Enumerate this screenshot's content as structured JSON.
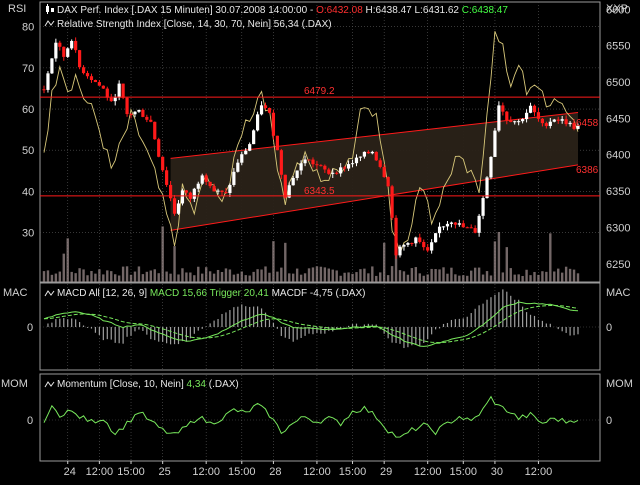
{
  "colors": {
    "background": "#000000",
    "grid": "#5a5a5a",
    "up_candle": "#ffffff",
    "down_candle": "#ff1a1a",
    "rsi_line": "#d8c87a",
    "support_line": "#ff1a1a",
    "channel_fill": "#2a2218",
    "volume": "#9a8a8a",
    "macd_line": "#78e85c",
    "trigger_line": "#78e85c",
    "histogram": "#a0a0a0",
    "momentum_line": "#78e85c",
    "axis_text": "#d0d0d0",
    "label_red": "#ff3030",
    "label_green": "#44ff44"
  },
  "main_panel": {
    "left_axis_label": "RSI",
    "right_axis_label": "XXP",
    "rsi_ticks": [
      "80",
      "70",
      "60",
      "50",
      "40",
      "30"
    ],
    "price_ticks": [
      "6600",
      "6550",
      "6500",
      "6450",
      "6400",
      "6350",
      "6300",
      "6250"
    ],
    "legend_price": {
      "icon": "candlestick-icon",
      "text": "DAX Perf. Index [.DAX  15 Minuten] 30.07.2008 14:00:00 - ",
      "o_label": "O:6432.08",
      "h_label": " H:6438.47",
      "l_label": " L:6431.62",
      "c_label": " C:6438.47"
    },
    "legend_rsi": {
      "icon": "line-icon",
      "text": "Relative Strength Index [Close, 14, 30, 70, Nein] 56,34 (.DAX)"
    },
    "price_labels": {
      "resistance": "6479.2",
      "support": "6343.5",
      "channel_top": "6458",
      "channel_bottom": "6386"
    }
  },
  "macd_panel": {
    "left_axis_label": "MAC",
    "right_axis_label": "MAC",
    "zero_tick": "0",
    "legend": {
      "icon": "line-icon",
      "part1": "MACD All [12, 26, 9] ",
      "macd_label": "MACD 15,66",
      "trigger_label": " Trigger 20,41",
      "macdf_label": " MACDF -4,75",
      "tail": " (.DAX)"
    }
  },
  "momentum_panel": {
    "left_axis_label": "MOM",
    "right_axis_label": "MOM",
    "zero_tick": "0",
    "legend": {
      "icon": "line-icon",
      "text": "Momentum [Close, 10, Nein] ",
      "value_label": "4,34",
      "tail": " (.DAX)"
    }
  },
  "time_axis": {
    "ticks": [
      "24",
      "12:00",
      "15:00",
      "25",
      "12:00",
      "15:00",
      "28",
      "12:00",
      "15:00",
      "29",
      "12:00",
      "15:00",
      "30",
      "12:00"
    ]
  },
  "chart_data": {
    "type": "candlestick",
    "title": "DAX Perf. Index [.DAX  15 Minuten] 30.07.2008 14:00:00",
    "last_bar": {
      "open": 6432.08,
      "high": 6438.47,
      "low": 6431.62,
      "close": 6438.47
    },
    "price_range": [
      6225,
      6610
    ],
    "rsi_range": [
      18,
      86
    ],
    "price_anchors": [
      [
        0,
        6490
      ],
      [
        3,
        6555
      ],
      [
        5,
        6535
      ],
      [
        7,
        6560
      ],
      [
        9,
        6520
      ],
      [
        12,
        6505
      ],
      [
        15,
        6490
      ],
      [
        17,
        6470
      ],
      [
        19,
        6495
      ],
      [
        21,
        6455
      ],
      [
        24,
        6460
      ],
      [
        27,
        6445
      ],
      [
        29,
        6400
      ],
      [
        31,
        6360
      ],
      [
        33,
        6320
      ],
      [
        35,
        6350
      ],
      [
        37,
        6340
      ],
      [
        40,
        6375
      ],
      [
        43,
        6350
      ],
      [
        46,
        6345
      ],
      [
        49,
        6390
      ],
      [
        52,
        6415
      ],
      [
        55,
        6470
      ],
      [
        57,
        6455
      ],
      [
        59,
        6405
      ],
      [
        61,
        6345
      ],
      [
        63,
        6370
      ],
      [
        66,
        6395
      ],
      [
        69,
        6385
      ],
      [
        72,
        6375
      ],
      [
        75,
        6380
      ],
      [
        78,
        6390
      ],
      [
        81,
        6400
      ],
      [
        83,
        6405
      ],
      [
        85,
        6385
      ],
      [
        87,
        6360
      ],
      [
        89,
        6265
      ],
      [
        91,
        6275
      ],
      [
        94,
        6285
      ],
      [
        97,
        6265
      ],
      [
        100,
        6300
      ],
      [
        103,
        6310
      ],
      [
        106,
        6300
      ],
      [
        109,
        6295
      ],
      [
        111,
        6340
      ],
      [
        113,
        6400
      ],
      [
        115,
        6470
      ],
      [
        117,
        6450
      ],
      [
        120,
        6445
      ],
      [
        123,
        6465
      ],
      [
        126,
        6440
      ],
      [
        129,
        6450
      ],
      [
        132,
        6445
      ],
      [
        134,
        6438
      ]
    ],
    "rsi_anchors": [
      [
        0,
        50
      ],
      [
        2,
        63
      ],
      [
        4,
        72
      ],
      [
        6,
        65
      ],
      [
        8,
        68
      ],
      [
        10,
        63
      ],
      [
        13,
        58
      ],
      [
        15,
        52
      ],
      [
        17,
        45
      ],
      [
        19,
        50
      ],
      [
        22,
        58
      ],
      [
        25,
        52
      ],
      [
        28,
        44
      ],
      [
        31,
        34
      ],
      [
        33,
        27
      ],
      [
        35,
        40
      ],
      [
        38,
        35
      ],
      [
        41,
        44
      ],
      [
        44,
        38
      ],
      [
        47,
        42
      ],
      [
        50,
        55
      ],
      [
        53,
        60
      ],
      [
        55,
        65
      ],
      [
        57,
        58
      ],
      [
        59,
        47
      ],
      [
        61,
        38
      ],
      [
        63,
        45
      ],
      [
        66,
        48
      ],
      [
        69,
        44
      ],
      [
        72,
        43
      ],
      [
        75,
        46
      ],
      [
        78,
        49
      ],
      [
        80,
        60
      ],
      [
        82,
        62
      ],
      [
        84,
        58
      ],
      [
        86,
        47
      ],
      [
        88,
        32
      ],
      [
        90,
        26
      ],
      [
        92,
        30
      ],
      [
        94,
        37
      ],
      [
        96,
        42
      ],
      [
        98,
        33
      ],
      [
        101,
        40
      ],
      [
        104,
        48
      ],
      [
        107,
        45
      ],
      [
        110,
        40
      ],
      [
        112,
        60
      ],
      [
        114,
        78
      ],
      [
        116,
        74
      ],
      [
        118,
        66
      ],
      [
        120,
        72
      ],
      [
        122,
        63
      ],
      [
        125,
        66
      ],
      [
        128,
        60
      ],
      [
        131,
        62
      ],
      [
        133,
        58
      ],
      [
        135,
        56
      ]
    ],
    "macd_anchors": [
      [
        0,
        0.3
      ],
      [
        4,
        0.5
      ],
      [
        8,
        0.6
      ],
      [
        12,
        0.45
      ],
      [
        16,
        0.2
      ],
      [
        20,
        0.0
      ],
      [
        24,
        0.1
      ],
      [
        28,
        -0.15
      ],
      [
        32,
        -0.4
      ],
      [
        36,
        -0.55
      ],
      [
        40,
        -0.45
      ],
      [
        44,
        -0.25
      ],
      [
        48,
        0.1
      ],
      [
        52,
        0.35
      ],
      [
        55,
        0.5
      ],
      [
        58,
        0.35
      ],
      [
        61,
        0.1
      ],
      [
        64,
        -0.05
      ],
      [
        68,
        -0.05
      ],
      [
        72,
        -0.1
      ],
      [
        76,
        -0.05
      ],
      [
        80,
        0.0
      ],
      [
        84,
        0.05
      ],
      [
        88,
        -0.3
      ],
      [
        92,
        -0.6
      ],
      [
        96,
        -0.75
      ],
      [
        100,
        -0.6
      ],
      [
        104,
        -0.45
      ],
      [
        108,
        -0.25
      ],
      [
        112,
        0.2
      ],
      [
        116,
        0.75
      ],
      [
        120,
        0.95
      ],
      [
        124,
        0.9
      ],
      [
        128,
        0.85
      ],
      [
        132,
        0.7
      ],
      [
        135,
        0.6
      ]
    ],
    "momentum_anchors": [
      [
        0,
        0.0
      ],
      [
        2,
        0.35
      ],
      [
        4,
        0.15
      ],
      [
        6,
        0.28
      ],
      [
        9,
        0.1
      ],
      [
        12,
        -0.05
      ],
      [
        15,
        0.05
      ],
      [
        18,
        -0.4
      ],
      [
        21,
        -0.1
      ],
      [
        24,
        0.25
      ],
      [
        27,
        -0.05
      ],
      [
        30,
        -0.3
      ],
      [
        33,
        -0.45
      ],
      [
        36,
        -0.2
      ],
      [
        39,
        0.1
      ],
      [
        42,
        -0.1
      ],
      [
        45,
        0.05
      ],
      [
        48,
        0.3
      ],
      [
        51,
        0.2
      ],
      [
        54,
        0.45
      ],
      [
        57,
        0.15
      ],
      [
        60,
        -0.35
      ],
      [
        63,
        -0.1
      ],
      [
        66,
        0.1
      ],
      [
        69,
        -0.05
      ],
      [
        72,
        0.05
      ],
      [
        75,
        -0.1
      ],
      [
        78,
        0.25
      ],
      [
        81,
        0.35
      ],
      [
        84,
        0.1
      ],
      [
        87,
        -0.3
      ],
      [
        90,
        -0.55
      ],
      [
        93,
        -0.3
      ],
      [
        96,
        -0.15
      ],
      [
        99,
        -0.35
      ],
      [
        102,
        -0.1
      ],
      [
        105,
        0.1
      ],
      [
        108,
        -0.05
      ],
      [
        111,
        0.3
      ],
      [
        113,
        0.65
      ],
      [
        115,
        0.4
      ],
      [
        117,
        0.3
      ],
      [
        120,
        0.05
      ],
      [
        123,
        0.15
      ],
      [
        126,
        -0.1
      ],
      [
        129,
        0.05
      ],
      [
        132,
        -0.05
      ],
      [
        135,
        0.04
      ]
    ]
  }
}
